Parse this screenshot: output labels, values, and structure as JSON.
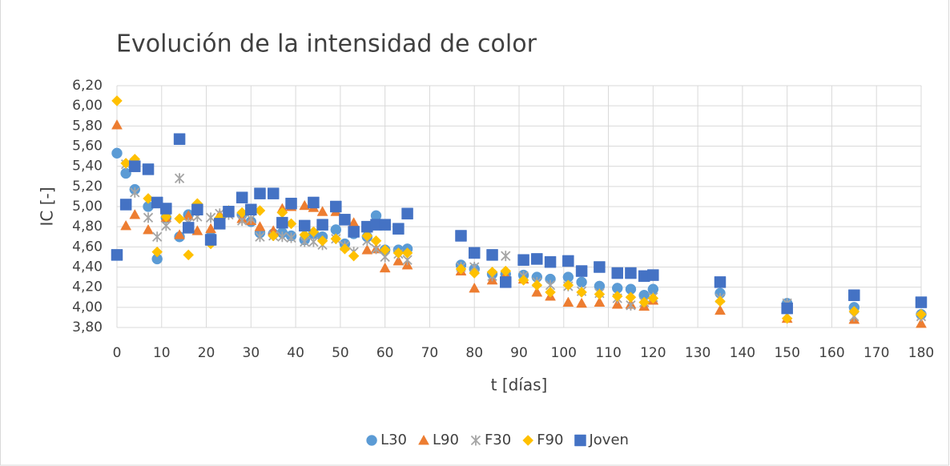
{
  "chart_data": {
    "type": "scatter",
    "title": "Evolución de la intensidad de color",
    "x_label": "t [días]",
    "y_label": "IC [-]",
    "x": [
      0,
      2,
      4,
      7,
      9,
      11,
      14,
      16,
      18,
      21,
      23,
      25,
      28,
      30,
      32,
      35,
      37,
      39,
      42,
      44,
      46,
      49,
      51,
      53,
      56,
      58,
      60,
      63,
      65,
      77,
      80,
      84,
      87,
      91,
      94,
      97,
      101,
      104,
      108,
      112,
      115,
      118,
      120,
      135,
      150,
      165,
      180
    ],
    "series": [
      {
        "name": "L30",
        "color": "#5b9bd5",
        "marker": "circle",
        "values": [
          5.53,
          5.33,
          5.17,
          5.0,
          4.48,
          4.89,
          4.7,
          4.92,
          4.96,
          4.7,
          4.86,
          4.95,
          4.92,
          4.85,
          4.74,
          4.73,
          4.74,
          4.71,
          4.67,
          4.73,
          4.7,
          4.77,
          4.63,
          4.73,
          4.7,
          4.91,
          4.57,
          4.57,
          4.58,
          4.42,
          4.38,
          4.33,
          4.33,
          4.32,
          4.3,
          4.28,
          4.3,
          4.25,
          4.21,
          4.19,
          4.18,
          4.12,
          4.18,
          4.14,
          4.04,
          4.0,
          3.93
        ]
      },
      {
        "name": "L90",
        "color": "#ed7d31",
        "marker": "triangle",
        "values": [
          5.81,
          4.81,
          4.92,
          4.77,
          null,
          4.89,
          4.72,
          4.91,
          4.76,
          4.78,
          4.92,
          4.96,
          4.88,
          4.86,
          4.8,
          4.76,
          4.98,
          5.0,
          5.01,
          4.99,
          4.95,
          4.95,
          4.86,
          4.84,
          4.57,
          4.58,
          4.39,
          4.46,
          4.42,
          4.36,
          4.19,
          4.27,
          4.32,
          4.28,
          4.15,
          4.11,
          4.05,
          4.04,
          4.05,
          4.03,
          4.03,
          4.01,
          4.07,
          3.97,
          3.89,
          3.88,
          3.84
        ]
      },
      {
        "name": "F30",
        "color": "#a5a5a5",
        "marker": "asterisk",
        "values": [
          null,
          5.42,
          5.14,
          4.89,
          4.7,
          4.81,
          5.28,
          4.84,
          4.9,
          4.89,
          4.93,
          4.92,
          4.86,
          4.88,
          4.7,
          4.71,
          4.7,
          4.69,
          4.65,
          4.65,
          4.62,
          4.68,
          4.61,
          4.55,
          4.66,
          4.58,
          4.5,
          4.53,
          4.47,
          4.4,
          4.4,
          4.31,
          4.51,
          4.31,
          4.25,
          4.22,
          4.21,
          4.16,
          4.14,
          4.09,
          4.02,
          4.05,
          4.1,
          4.09,
          4.04,
          3.91,
          3.91
        ]
      },
      {
        "name": "F90",
        "color": "#ffc000",
        "marker": "diamond",
        "values": [
          6.05,
          5.43,
          5.47,
          5.08,
          4.55,
          4.9,
          4.88,
          4.52,
          5.03,
          4.63,
          4.89,
          4.96,
          4.94,
          4.97,
          4.96,
          4.71,
          4.94,
          4.83,
          4.72,
          4.75,
          4.66,
          4.68,
          4.58,
          4.51,
          4.71,
          4.66,
          4.57,
          4.54,
          4.54,
          4.38,
          4.34,
          4.35,
          4.36,
          4.27,
          4.22,
          4.15,
          4.22,
          4.15,
          4.13,
          4.11,
          4.1,
          4.05,
          4.09,
          4.06,
          3.89,
          3.96,
          3.93
        ]
      },
      {
        "name": "Joven",
        "color": "#4472c4",
        "marker": "square",
        "values": [
          4.52,
          5.02,
          5.4,
          5.37,
          5.04,
          4.98,
          5.67,
          4.79,
          4.97,
          4.67,
          4.83,
          4.95,
          5.09,
          4.97,
          5.13,
          5.13,
          4.84,
          5.03,
          4.81,
          5.04,
          4.82,
          5.0,
          4.87,
          4.75,
          4.8,
          4.82,
          4.82,
          4.78,
          4.93,
          4.71,
          4.54,
          4.52,
          4.25,
          4.47,
          4.48,
          4.45,
          4.46,
          4.36,
          4.4,
          4.34,
          4.34,
          4.31,
          4.32,
          4.25,
          3.99,
          4.12,
          4.05
        ]
      }
    ],
    "xlim": [
      0,
      180
    ],
    "xticks": [
      0,
      10,
      20,
      30,
      40,
      50,
      60,
      70,
      80,
      90,
      100,
      110,
      120,
      130,
      140,
      150,
      160,
      170,
      180
    ],
    "ylim": [
      3.8,
      6.2
    ],
    "yticks": [
      {
        "value": 3.8,
        "label": "3,80"
      },
      {
        "value": 4.0,
        "label": "4,00"
      },
      {
        "value": 4.2,
        "label": "4,20"
      },
      {
        "value": 4.4,
        "label": "4,40"
      },
      {
        "value": 4.6,
        "label": "4,60"
      },
      {
        "value": 4.8,
        "label": "4,80"
      },
      {
        "value": 5.0,
        "label": "5,00"
      },
      {
        "value": 5.2,
        "label": "5,20"
      },
      {
        "value": 5.4,
        "label": "5,40"
      },
      {
        "value": 5.6,
        "label": "5,60"
      },
      {
        "value": 5.8,
        "label": "5,80"
      },
      {
        "value": 6.0,
        "label": "6,00"
      },
      {
        "value": 6.2,
        "label": "6,20"
      }
    ],
    "grid": true,
    "legend": "bottom"
  }
}
